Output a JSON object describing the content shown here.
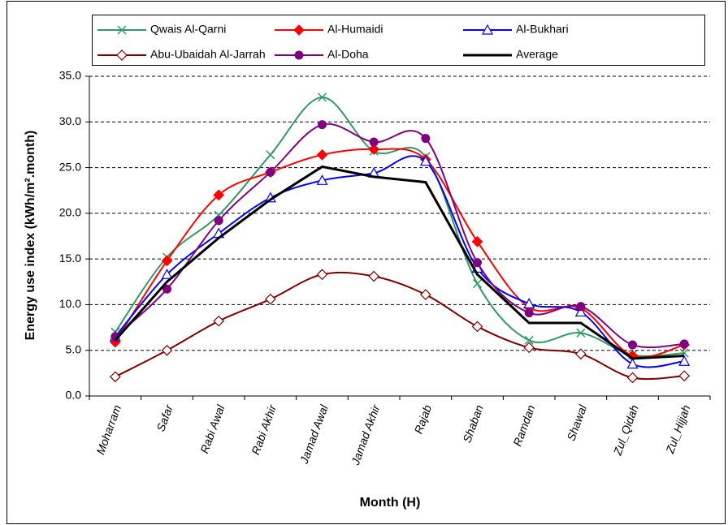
{
  "chart_data": {
    "type": "line",
    "x_label": "Month (H)",
    "y_label": "Energy use index (kWh/m².month)",
    "categories": [
      "Moharram",
      "Safar",
      "Rabi Awal",
      "Rabi Akhir",
      "Jamad Awal",
      "Jamad Akhir",
      "Rajab",
      "Shaban",
      "Ramdan",
      "Shawal",
      "Zul_Qidah",
      "Zul_Hijjah"
    ],
    "series": [
      {
        "name": "Qwais Al-Qarni",
        "color": "#339966",
        "marker": "x",
        "smooth": true,
        "values": [
          7.0,
          15.2,
          19.8,
          26.4,
          32.7,
          26.8,
          26.2,
          12.3,
          6.1,
          6.9,
          4.5,
          4.7
        ]
      },
      {
        "name": "Al-Humaidi",
        "color": "#ff0000",
        "marker": "diamond",
        "smooth": true,
        "values": [
          5.9,
          14.8,
          22.0,
          24.5,
          26.4,
          27.0,
          25.9,
          16.9,
          9.7,
          9.6,
          4.4,
          5.6
        ]
      },
      {
        "name": "Al-Bukhari",
        "color": "#0000ff",
        "marker": "triangle",
        "smooth": true,
        "values": [
          6.5,
          13.3,
          17.8,
          21.7,
          23.6,
          24.4,
          25.7,
          14.0,
          10.1,
          9.2,
          3.5,
          3.8
        ]
      },
      {
        "name": "Abu-Ubaidah Al-Jarrah",
        "color": "#800000",
        "marker": "diamond-open",
        "smooth": true,
        "values": [
          2.1,
          5.0,
          8.2,
          10.6,
          13.3,
          13.1,
          11.1,
          7.6,
          5.3,
          4.6,
          2.0,
          2.2
        ]
      },
      {
        "name": "Al-Doha",
        "color": "#800080",
        "marker": "circle",
        "smooth": true,
        "values": [
          6.5,
          11.7,
          19.2,
          24.5,
          29.7,
          27.8,
          28.2,
          14.6,
          9.1,
          9.8,
          5.6,
          5.7
        ]
      },
      {
        "name": "Average",
        "color": "#000000",
        "smooth": false,
        "line_width": 3,
        "values": [
          6.1,
          12.5,
          17.3,
          21.5,
          25.1,
          24.0,
          23.4,
          13.3,
          8.0,
          8.0,
          4.1,
          4.4
        ]
      }
    ],
    "ylim": [
      0,
      35
    ],
    "yticks": [
      {
        "value": 0,
        "label": "0.0"
      },
      {
        "value": 5,
        "label": "5.0"
      },
      {
        "value": 10,
        "label": "10.0"
      },
      {
        "value": 15,
        "label": "15.0"
      },
      {
        "value": 20,
        "label": "20.0"
      },
      {
        "value": 25,
        "label": "25.0"
      },
      {
        "value": 30,
        "label": "30.0"
      },
      {
        "value": 35,
        "label": "35.0"
      }
    ],
    "grid": true,
    "legend": "top"
  }
}
